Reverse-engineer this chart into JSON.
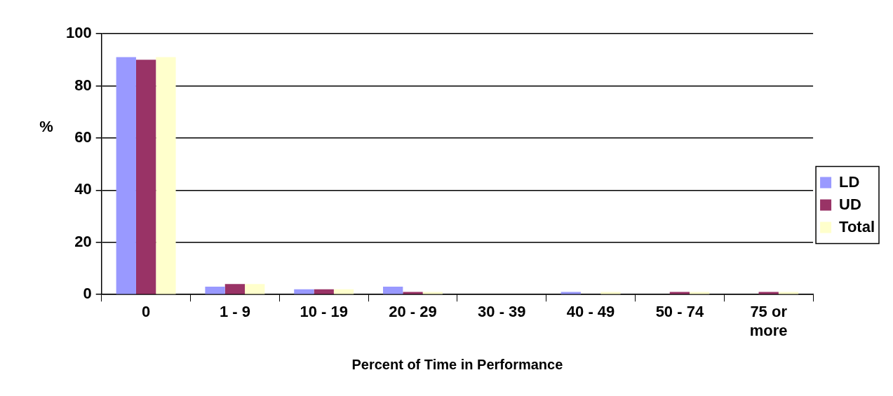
{
  "chart_data": {
    "type": "bar",
    "xlabel": "Percent of Time in Performance",
    "ylabel": "%",
    "categories": [
      "0",
      "1 - 9",
      "10 - 19",
      "20 - 29",
      "30 - 39",
      "40 - 49",
      "50 - 74",
      "75 or more"
    ],
    "series": [
      {
        "name": "LD",
        "color": "#9999ff",
        "values": [
          91,
          3,
          2,
          3,
          0,
          1,
          0,
          0
        ]
      },
      {
        "name": "UD",
        "color": "#993366",
        "values": [
          90,
          4,
          2,
          1,
          0,
          0,
          1,
          1
        ]
      },
      {
        "name": "Total",
        "color": "#ffffcc",
        "values": [
          91,
          4,
          2,
          1,
          0,
          1,
          1,
          1
        ]
      }
    ],
    "ylim": [
      0,
      100
    ],
    "yticks": [
      0,
      20,
      40,
      60,
      80,
      100
    ],
    "grid": "y",
    "legend": "right"
  }
}
